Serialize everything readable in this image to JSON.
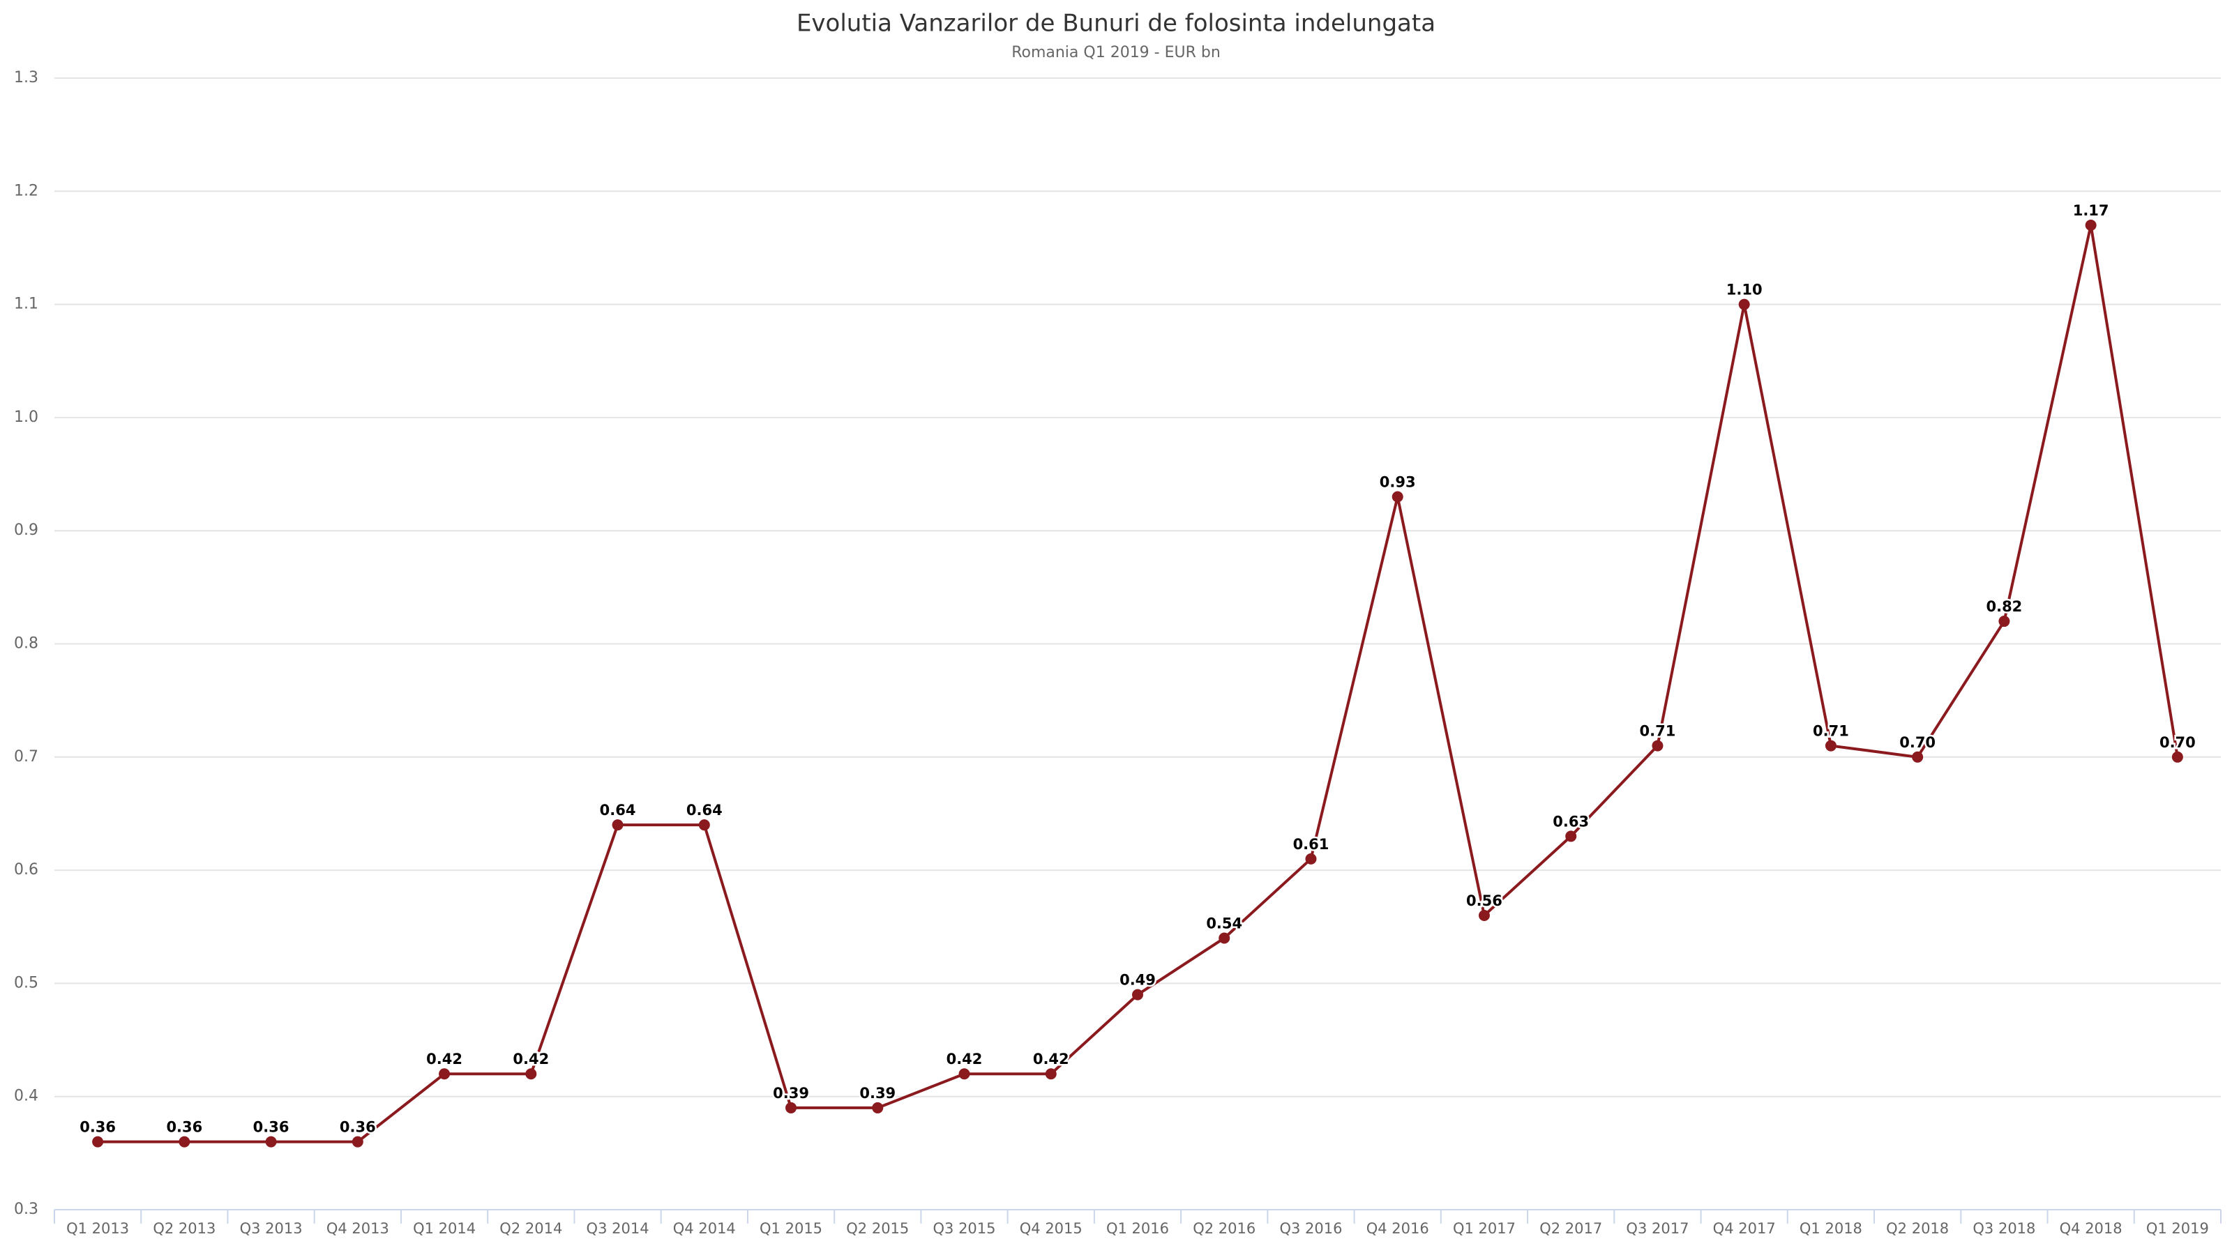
{
  "chart_data": {
    "type": "line",
    "title": "Evolutia Vanzarilor de Bunuri de folosinta indelungata",
    "subtitle": "Romania Q1 2019 - EUR bn",
    "categories": [
      "Q1 2013",
      "Q2 2013",
      "Q3 2013",
      "Q4 2013",
      "Q1 2014",
      "Q2 2014",
      "Q3 2014",
      "Q4 2014",
      "Q1 2015",
      "Q2 2015",
      "Q3 2015",
      "Q4 2015",
      "Q1 2016",
      "Q2 2016",
      "Q3 2016",
      "Q4 2016",
      "Q1 2017",
      "Q2 2017",
      "Q3 2017",
      "Q4 2017",
      "Q1 2018",
      "Q2 2018",
      "Q3 2018",
      "Q4 2018",
      "Q1 2019"
    ],
    "values": [
      0.36,
      0.36,
      0.36,
      0.36,
      0.42,
      0.42,
      0.64,
      0.64,
      0.39,
      0.39,
      0.42,
      0.42,
      0.49,
      0.54,
      0.61,
      0.93,
      0.56,
      0.63,
      0.71,
      1.1,
      0.71,
      0.7,
      0.82,
      1.17,
      0.7
    ],
    "value_labels": [
      "0.36",
      "0.36",
      "0.36",
      "0.36",
      "0.42",
      "0.42",
      "0.64",
      "0.64",
      "0.39",
      "0.39",
      "0.42",
      "0.42",
      "0.49",
      "0.54",
      "0.61",
      "0.93",
      "0.56",
      "0.63",
      "0.71",
      "1.10",
      "0.71",
      "0.70",
      "0.82",
      "1.17",
      "0.70"
    ],
    "color": "#8b1a1f",
    "ylim": [
      0.3,
      1.3
    ],
    "yticks": [
      0.3,
      0.4,
      0.5,
      0.6,
      0.7,
      0.8,
      0.9,
      {
        "value": 1,
        "label": "1.0"
      },
      1.1,
      1.2,
      1.3
    ],
    "grid": true
  }
}
